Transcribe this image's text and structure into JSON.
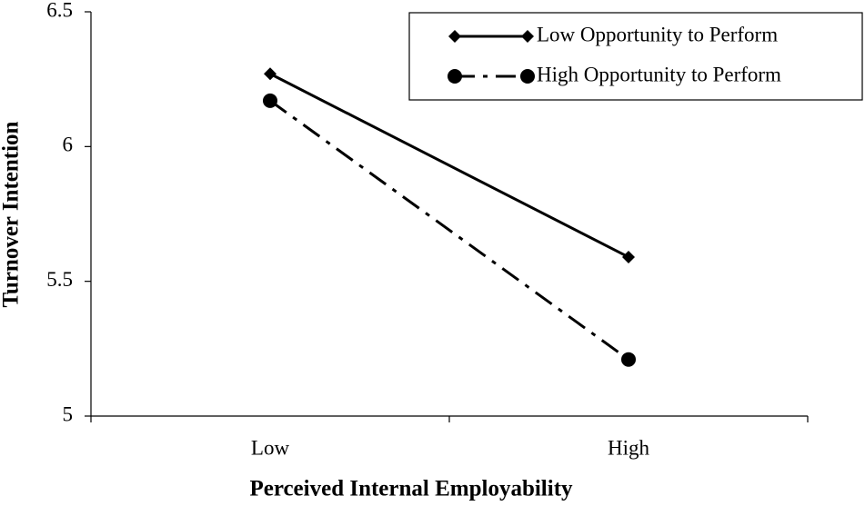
{
  "chart_data": {
    "type": "line",
    "x_label": "Perceived Internal Employability",
    "y_label": "Turnover Intention",
    "categories": [
      "Low",
      "High"
    ],
    "series": [
      {
        "name": "Low Opportunity to Perform",
        "color": "#000000",
        "line_style": "solid",
        "marker": "diamond",
        "values": [
          6.27,
          5.59
        ]
      },
      {
        "name": "High Opportunity to Perform",
        "color": "#000000",
        "line_style": "dashdot",
        "marker": "circle",
        "values": [
          6.17,
          5.21
        ]
      }
    ],
    "ylim": [
      5,
      6.5
    ],
    "yticks": [
      5,
      5.5,
      6,
      6.5
    ],
    "grid": false,
    "legend": "top-right"
  }
}
